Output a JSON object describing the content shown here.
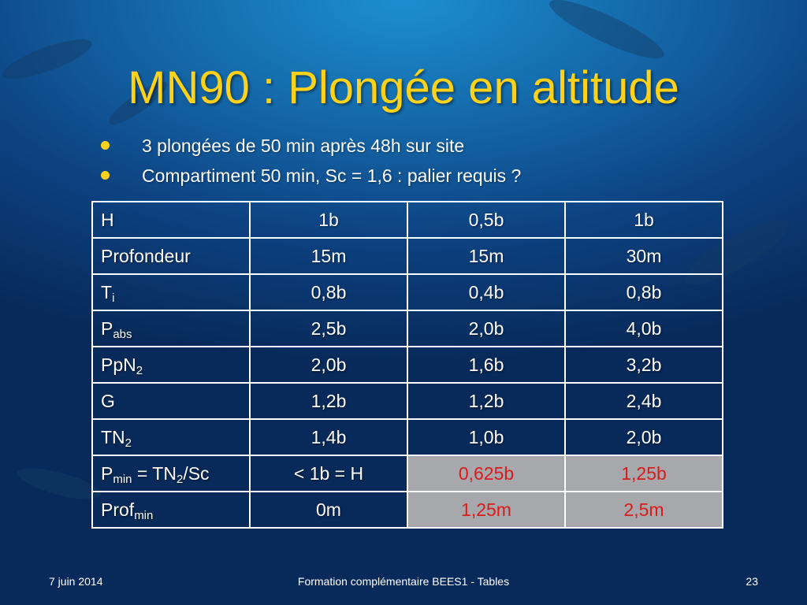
{
  "slide": {
    "title": "MN90 : Plongée en altitude",
    "bullets": [
      "3 plongées de 50 min après 48h sur site",
      "Compartiment 50 min, Sc = 1,6 : palier requis ?"
    ]
  },
  "table": {
    "rows": [
      {
        "label_main": "H",
        "label_sub": "",
        "label_suffix": "",
        "values": [
          "1b",
          "0,5b",
          "1b"
        ]
      },
      {
        "label_main": "Profondeur",
        "label_sub": "",
        "label_suffix": "",
        "values": [
          "15m",
          "15m",
          "30m"
        ]
      },
      {
        "label_main": "T",
        "label_sub": "i",
        "label_suffix": "",
        "values": [
          "0,8b",
          "0,4b",
          "0,8b"
        ]
      },
      {
        "label_main": "P",
        "label_sub": "abs",
        "label_suffix": "",
        "values": [
          "2,5b",
          "2,0b",
          "4,0b"
        ]
      },
      {
        "label_main": "PpN",
        "label_sub": "2",
        "label_suffix": "",
        "values": [
          "2,0b",
          "1,6b",
          "3,2b"
        ]
      },
      {
        "label_main": "G",
        "label_sub": "",
        "label_suffix": "",
        "values": [
          "1,2b",
          "1,2b",
          "2,4b"
        ]
      },
      {
        "label_main": "TN",
        "label_sub": "2",
        "label_suffix": "",
        "values": [
          "1,4b",
          "1,0b",
          "2,0b"
        ]
      },
      {
        "label_main": "P",
        "label_sub": "min",
        "label_suffix": " = TN",
        "label_sub2": "2",
        "label_suffix2": "/Sc",
        "values": [
          "< 1b = H",
          "0,625b",
          "1,25b"
        ]
      },
      {
        "label_main": "Prof",
        "label_sub": "min",
        "label_suffix": "",
        "values": [
          "0m",
          "1,25m",
          "2,5m"
        ]
      }
    ]
  },
  "colors": {
    "title": "#ffd21a",
    "highlight_background": "#a7a8ac",
    "highlight_text": "#d81c1c"
  },
  "footer": {
    "date": "7 juin 2014",
    "center": "Formation complémentaire BEES1 - Tables",
    "page": "23"
  }
}
